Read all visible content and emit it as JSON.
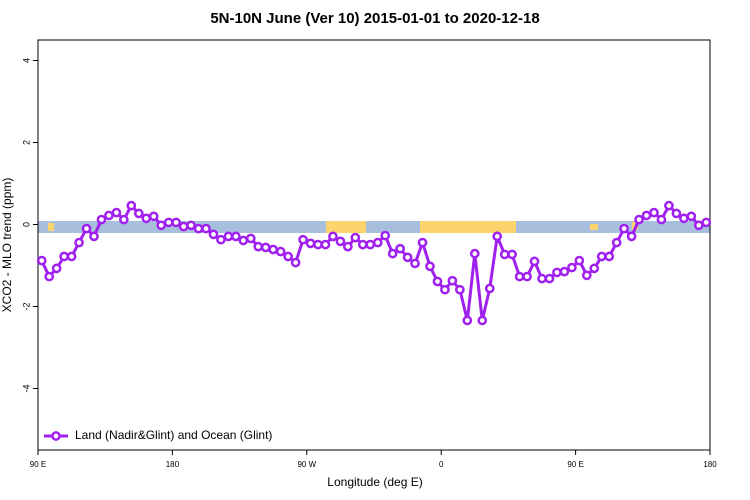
{
  "chart_data": {
    "type": "line",
    "title": "5N-10N June (Ver 10)   2015-01-01 to 2020-12-18",
    "x_label": "Longitude (deg E)",
    "y_label": "XCO2 - MLO trend (ppm)",
    "x": [
      92.5,
      97.5,
      102.5,
      107.5,
      112.5,
      117.5,
      122.5,
      127.5,
      132.5,
      137.5,
      142.5,
      147.5,
      152.5,
      157.5,
      162.5,
      167.5,
      172.5,
      177.5,
      182.5,
      187.5,
      192.5,
      197.5,
      202.5,
      207.5,
      212.5,
      217.5,
      222.5,
      227.5,
      232.5,
      237.5,
      242.5,
      247.5,
      252.5,
      257.5,
      262.5,
      267.5,
      272.5,
      277.5,
      282.5,
      287.5,
      292.5,
      297.5,
      302.5,
      307.5,
      312.5,
      317.5,
      322.5,
      327.5,
      332.5,
      337.5,
      342.5,
      347.5,
      352.5,
      357.5,
      362.5,
      367.5,
      372.5,
      377.5,
      382.5,
      387.5,
      392.5,
      397.5,
      402.5,
      407.5,
      412.5,
      417.5,
      422.5,
      427.5,
      432.5,
      437.5,
      442.5,
      447.5,
      452.5,
      457.5,
      462.5,
      467.5,
      472.5,
      477.5,
      482.5,
      487.5,
      492.5,
      497.5,
      502.5,
      507.5,
      512.5,
      517.5,
      522.5,
      527.5,
      532.5,
      537.5
    ],
    "series": [
      {
        "name": "Land (Nadir&Glint) and Ocean (Glint)",
        "color": "#a020f0",
        "values": [
          -0.88,
          -1.27,
          -1.07,
          -0.78,
          -0.78,
          -0.44,
          -0.1,
          -0.29,
          0.12,
          0.22,
          0.29,
          0.12,
          0.46,
          0.27,
          0.15,
          0.2,
          -0.02,
          0.05,
          0.05,
          -0.05,
          -0.02,
          -0.1,
          -0.1,
          -0.24,
          -0.37,
          -0.29,
          -0.29,
          -0.39,
          -0.34,
          -0.54,
          -0.56,
          -0.61,
          -0.66,
          -0.78,
          -0.93,
          -0.37,
          -0.46,
          -0.49,
          -0.49,
          -0.29,
          -0.41,
          -0.54,
          -0.32,
          -0.49,
          -0.49,
          -0.44,
          -0.27,
          -0.71,
          -0.59,
          -0.8,
          -0.95,
          -0.44,
          -1.02,
          -1.39,
          -1.59,
          -1.37,
          -1.59,
          -2.34,
          -0.71,
          -2.34,
          -1.56,
          -0.29,
          -0.73,
          -0.73,
          -1.27,
          -1.27,
          -0.9,
          -1.32,
          -1.32,
          -1.17,
          -1.15,
          -1.05,
          -0.88,
          -1.24,
          -1.07,
          -0.78,
          -0.78,
          -0.44,
          -0.1,
          -0.29,
          0.12,
          0.22,
          0.29,
          0.12,
          0.46,
          0.27,
          0.15,
          0.2,
          -0.02,
          0.05
        ]
      }
    ],
    "xlim": [
      90,
      540
    ],
    "xticks": [
      {
        "value": 90,
        "label": "90 E"
      },
      {
        "value": 180,
        "label": "180"
      },
      {
        "value": 270,
        "label": "90 W"
      },
      {
        "value": 360,
        "label": "0"
      },
      {
        "value": 450,
        "label": "90 E"
      },
      {
        "value": 540,
        "label": "180"
      }
    ],
    "ylim": [
      -5.5,
      4.5
    ],
    "yticks": [
      -4,
      -2,
      0,
      2,
      4
    ],
    "legend": "bottom-left"
  }
}
